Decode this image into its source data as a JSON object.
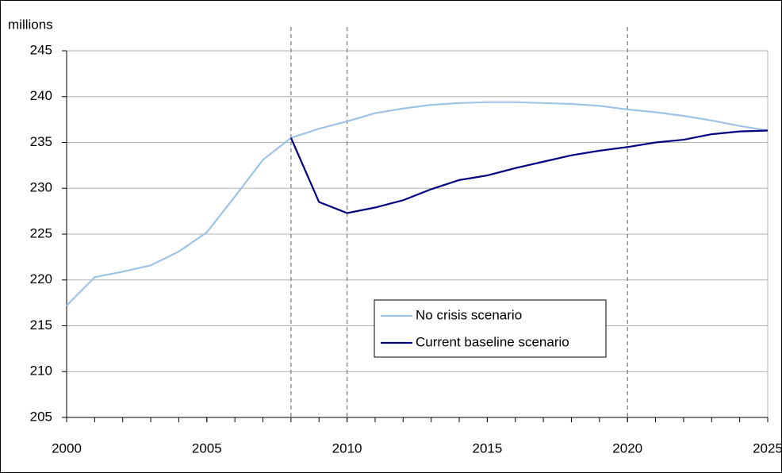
{
  "chart_data": {
    "type": "line",
    "y_label": "millions",
    "x": [
      2000,
      2001,
      2002,
      2003,
      2004,
      2005,
      2006,
      2007,
      2008,
      2009,
      2010,
      2011,
      2012,
      2013,
      2014,
      2015,
      2016,
      2017,
      2018,
      2019,
      2020,
      2021,
      2022,
      2023,
      2024,
      2025
    ],
    "series": [
      {
        "name": "No crisis scenario",
        "color": "#9dc3e6",
        "values": [
          217.2,
          220.3,
          220.9,
          221.6,
          223.1,
          225.2,
          229.1,
          233.1,
          235.5,
          236.5,
          237.3,
          238.2,
          238.7,
          239.1,
          239.3,
          239.4,
          239.4,
          239.3,
          239.2,
          239.0,
          238.6,
          238.3,
          237.9,
          237.4,
          236.8,
          236.3
        ]
      },
      {
        "name": "Current baseline scenario",
        "color": "#000080",
        "values": [
          null,
          null,
          null,
          null,
          null,
          null,
          null,
          null,
          235.5,
          228.5,
          227.3,
          227.9,
          228.7,
          229.9,
          230.9,
          231.4,
          232.2,
          232.9,
          233.6,
          234.1,
          234.5,
          235.0,
          235.3,
          235.9,
          236.2,
          236.3
        ]
      }
    ],
    "reference_lines": [
      2008,
      2010,
      2020
    ],
    "xlim": [
      2000,
      2025
    ],
    "xticks": [
      2000,
      2005,
      2010,
      2015,
      2020,
      2025
    ],
    "ylim": [
      205,
      245
    ],
    "yticks": [
      205,
      210,
      215,
      220,
      225,
      230,
      235,
      240,
      245
    ],
    "grid": true
  }
}
